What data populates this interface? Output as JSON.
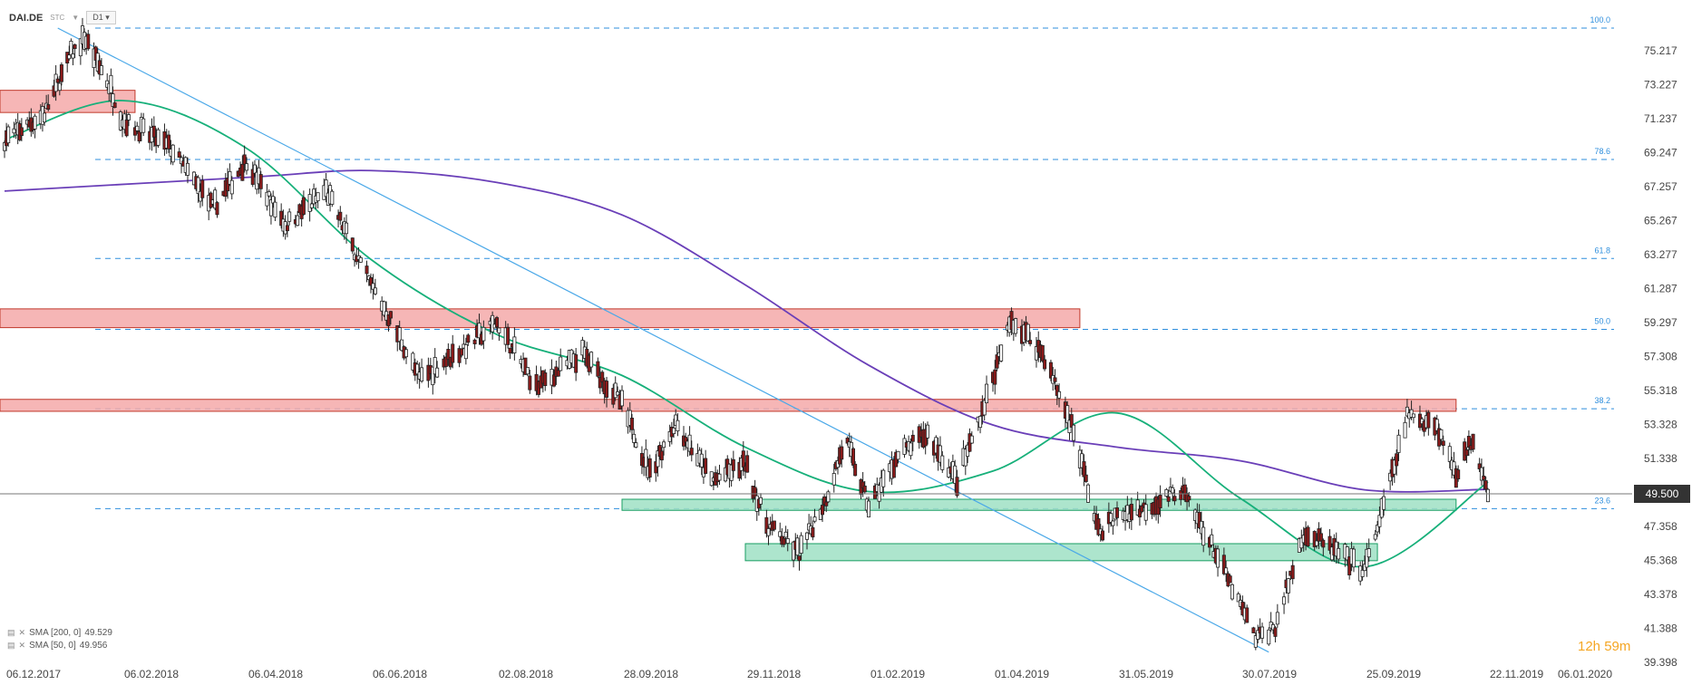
{
  "header": {
    "symbol": "DAI.DE",
    "source": "STC",
    "timeframe": "D1"
  },
  "timer": "12h 59m",
  "colors": {
    "sma200": "#6a3fb8",
    "sma50": "#17b07a",
    "resistance_zone": "#f4a9a9",
    "support_zone": "#9fe1c4",
    "fib_line": "#2f8fdd",
    "trendline": "#4aa8e8",
    "bull_candle": "#ffffff",
    "bear_candle": "#8b1a1a",
    "price_label_bg": "#333333"
  },
  "chart_data": {
    "type": "candlestick",
    "symbol": "DAI.DE",
    "x_ticks": [
      "06.12.2017",
      "06.02.2018",
      "06.04.2018",
      "06.06.2018",
      "02.08.2018",
      "28.09.2018",
      "29.11.2018",
      "01.02.2019",
      "01.04.2019",
      "31.05.2019",
      "30.07.2019",
      "25.09.2019",
      "22.11.2019",
      "06.01.2020"
    ],
    "y_ticks": [
      "75.217",
      "73.227",
      "71.237",
      "69.247",
      "67.257",
      "65.267",
      "63.277",
      "61.287",
      "59.297",
      "57.308",
      "55.318",
      "53.328",
      "51.338",
      "49.348",
      "47.358",
      "45.368",
      "43.378",
      "41.388",
      "39.398"
    ],
    "ylim": [
      39.398,
      76.0
    ],
    "current_price": "49.500",
    "fibonacci": [
      {
        "label": "100.0",
        "value": 76.0
      },
      {
        "label": "78.6",
        "value": 68.85
      },
      {
        "label": "61.8",
        "value": 63.05
      },
      {
        "label": "50.0",
        "value": 58.9
      },
      {
        "label": "38.2",
        "value": 54.25
      },
      {
        "label": "23.6",
        "value": 48.4
      }
    ],
    "zones": [
      {
        "kind": "resistance",
        "from": "06.12.2017",
        "to": "12.02.2018",
        "low": 71.6,
        "high": 72.9
      },
      {
        "kind": "resistance",
        "from": "06.12.2017",
        "to": "13.05.2019",
        "low": 59.0,
        "high": 60.1
      },
      {
        "kind": "resistance",
        "from": "06.12.2017",
        "to": "07.11.2019",
        "low": 54.1,
        "high": 54.8
      },
      {
        "kind": "support",
        "from": "28.09.2018",
        "to": "07.11.2019",
        "low": 48.3,
        "high": 48.95
      },
      {
        "kind": "support",
        "from": "29.11.2018",
        "to": "01.10.2019",
        "low": 45.35,
        "high": 46.35
      }
    ],
    "trendline": {
      "from": {
        "x": "03.01.2018",
        "y": 76.0
      },
      "to": {
        "x": "12.08.2019",
        "y": 40.0
      }
    },
    "series": [
      {
        "name": "SMA [200, 0]",
        "last": "49.529",
        "color": "#6a3fb8",
        "points": [
          [
            "06.12.2017",
            67.0
          ],
          [
            "06.04.2018",
            67.8
          ],
          [
            "06.06.2018",
            68.2
          ],
          [
            "02.08.2018",
            67.5
          ],
          [
            "28.09.2018",
            65.6
          ],
          [
            "29.11.2018",
            61.5
          ],
          [
            "01.02.2019",
            56.8
          ],
          [
            "01.04.2019",
            53.3
          ],
          [
            "31.05.2019",
            52.0
          ],
          [
            "30.07.2019",
            51.2
          ],
          [
            "25.09.2019",
            49.5
          ],
          [
            "22.11.2019",
            49.529
          ]
        ]
      },
      {
        "name": "SMA [50, 0]",
        "last": "49.956",
        "color": "#17b07a",
        "points": [
          [
            "06.12.2017",
            70.0
          ],
          [
            "06.02.2018",
            72.3
          ],
          [
            "06.04.2018",
            69.5
          ],
          [
            "06.06.2018",
            63.0
          ],
          [
            "02.08.2018",
            58.6
          ],
          [
            "28.09.2018",
            56.2
          ],
          [
            "29.11.2018",
            52.0
          ],
          [
            "01.02.2019",
            49.4
          ],
          [
            "01.04.2019",
            50.6
          ],
          [
            "31.05.2019",
            54.0
          ],
          [
            "30.07.2019",
            49.0
          ],
          [
            "25.09.2019",
            45.0
          ],
          [
            "22.11.2019",
            49.956
          ]
        ]
      }
    ]
  }
}
